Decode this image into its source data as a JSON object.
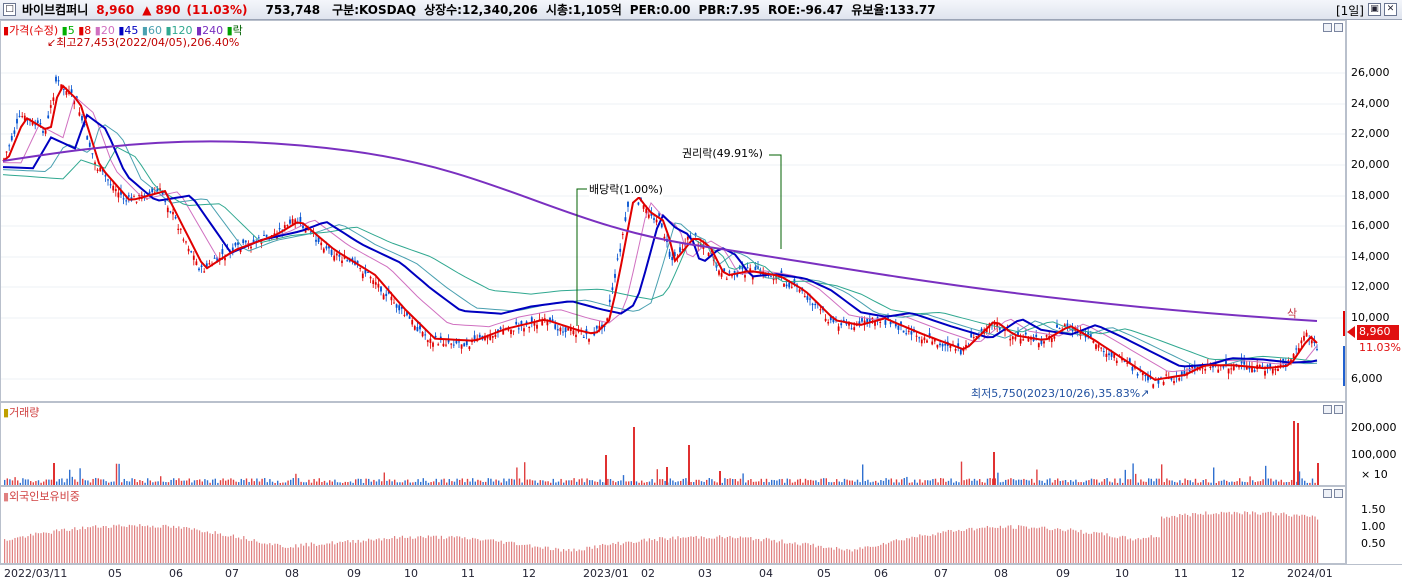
{
  "header": {
    "stock_name": "바이브컴퍼니",
    "price": "8,960",
    "change_symbol": "▲",
    "change": "890",
    "change_pct": "(11.03%)",
    "volume": "753,748",
    "market": "구분:KOSDAQ",
    "shares": "상장수:12,340,206",
    "market_cap": "시총:1,105억",
    "per": "PER:0.00",
    "pbr": "PBR:7.95",
    "roe": "ROE:-96.47",
    "float_ratio": "유보율:133.77",
    "period_button": "[1일]"
  },
  "price_pane": {
    "legend": {
      "price": "가격(수정)",
      "ma": [
        {
          "label": "5",
          "color": "#00b000"
        },
        {
          "label": "8",
          "color": "#e00000"
        },
        {
          "label": "20",
          "color": "#d070c0"
        },
        {
          "label": "45",
          "color": "#0000c0"
        },
        {
          "label": "60",
          "color": "#4aa0b0"
        },
        {
          "label": "120",
          "color": "#30a890"
        },
        {
          "label": "240",
          "color": "#7a30c0"
        }
      ],
      "ex_rights": "락"
    },
    "high_note": "최고27,453(2022/04/05),206.40%",
    "low_note": "최저5,750(2023/10/26),35.83%",
    "dividend_note": "배당락(1.00%)",
    "rights_note": "권리락(49.91%)",
    "marker": "삭",
    "current_price_tag": "8,960",
    "current_pct_tag": "11.03%",
    "y_ticks": [
      "26,000",
      "24,000",
      "22,000",
      "20,000",
      "18,000",
      "16,000",
      "14,000",
      "12,000",
      "10,000",
      "6,000"
    ]
  },
  "volume_pane": {
    "title": "거래량",
    "y_ticks": [
      "200,000",
      "100,000",
      "× 10"
    ]
  },
  "foreign_pane": {
    "title": "외국인보유비중",
    "y_ticks": [
      "1.50",
      "1.00",
      "0.50"
    ]
  },
  "x_axis": [
    "2022/03/11",
    "05",
    "06",
    "07",
    "08",
    "09",
    "10",
    "11",
    "12",
    "2023/01",
    "02",
    "03",
    "04",
    "05",
    "06",
    "07",
    "08",
    "09",
    "10",
    "11",
    "12",
    "2024/01"
  ],
  "colors": {
    "up": "#e00000",
    "down": "#0050d0",
    "volume_bar": "#e04040",
    "foreign_bar": "#e08080"
  }
}
